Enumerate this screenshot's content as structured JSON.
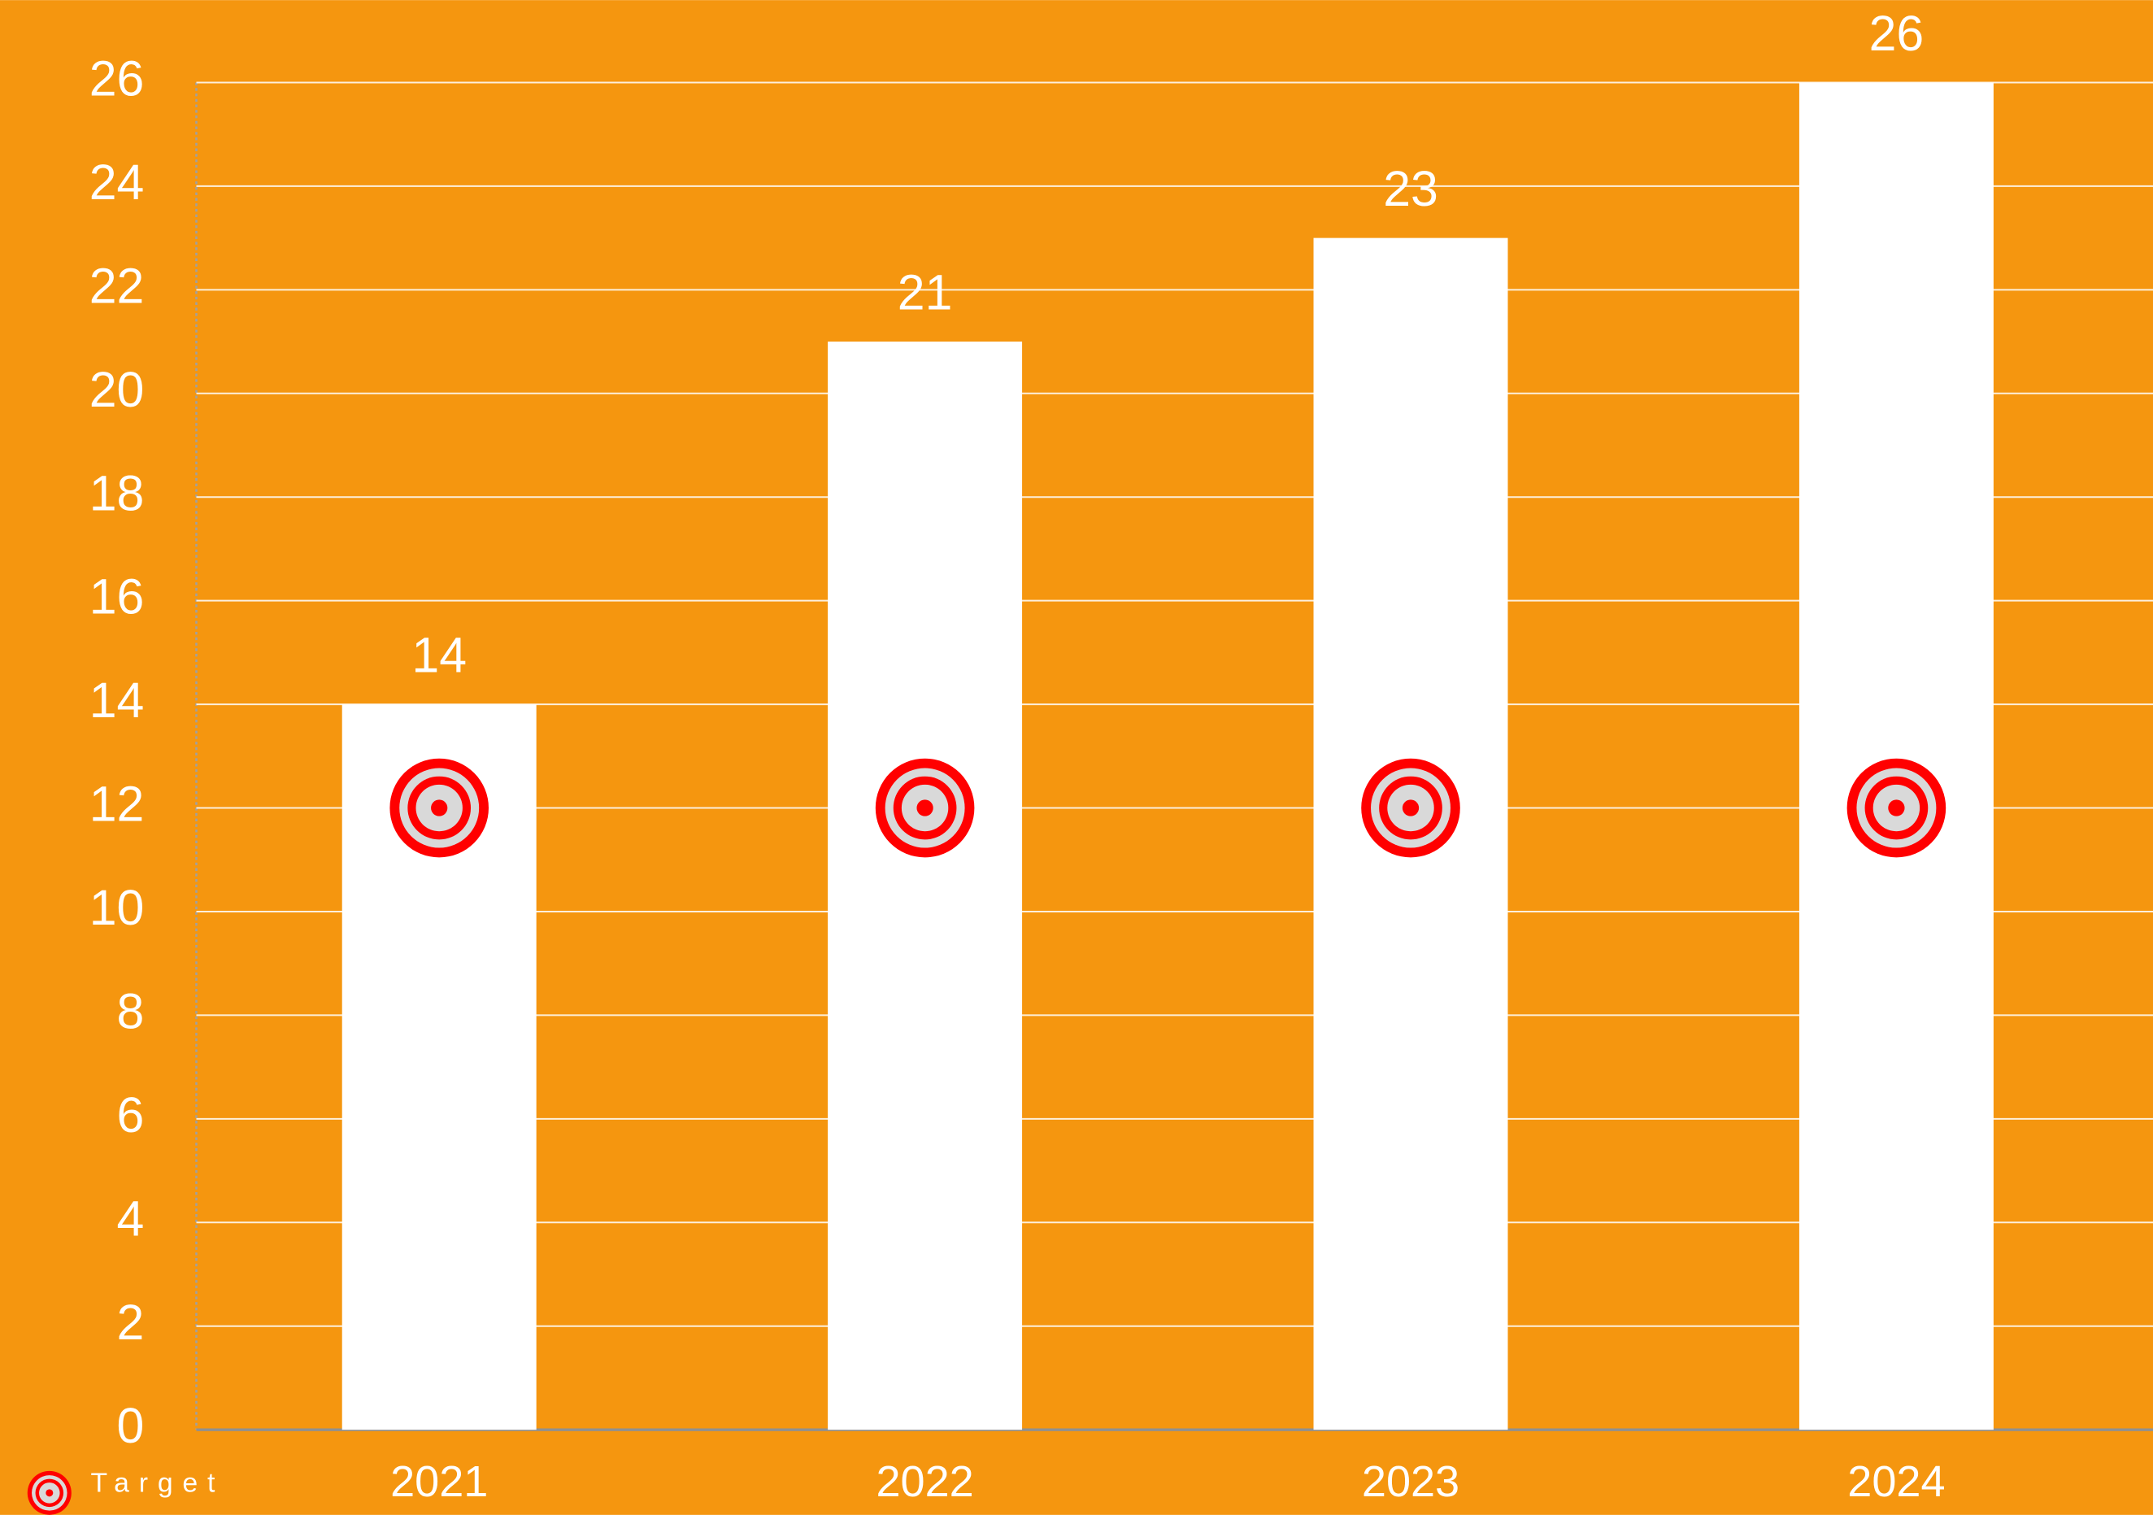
{
  "chart_data": {
    "type": "bar",
    "categories": [
      "2021",
      "2022",
      "2023",
      "2024"
    ],
    "series": [
      {
        "values": [
          14,
          21,
          23,
          26
        ],
        "color": "#ffffff"
      },
      {
        "name": "Target",
        "values": [
          12,
          12,
          12,
          12
        ],
        "color": "#ff0000",
        "marker": "target"
      }
    ],
    "ylim": [
      0,
      26
    ],
    "yticks": [
      0,
      2,
      4,
      6,
      8,
      10,
      12,
      14,
      16,
      18,
      20,
      22,
      24,
      26
    ],
    "grid": true,
    "legend": "bottom-left",
    "background": "#f5960f"
  }
}
